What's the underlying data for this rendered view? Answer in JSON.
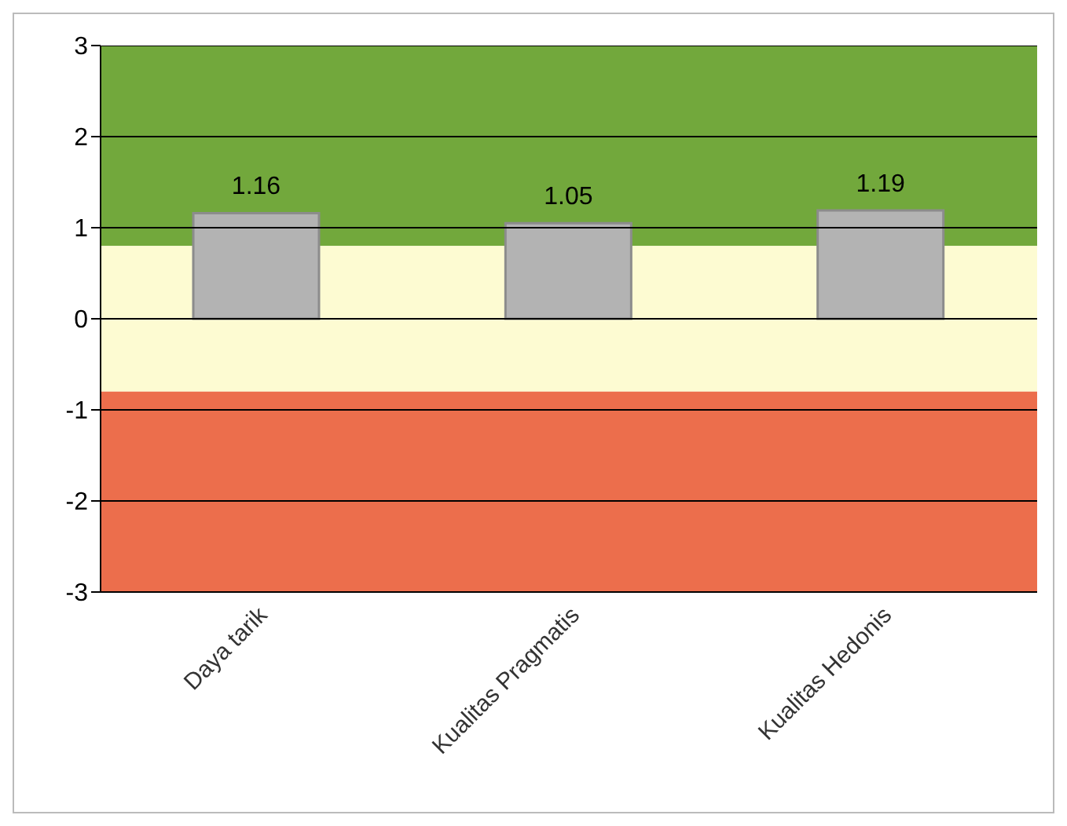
{
  "chart_data": {
    "type": "bar",
    "categories": [
      "Daya tarik",
      "Kualitas Pragmatis",
      "Kualitas Hedonis"
    ],
    "values": [
      1.16,
      1.05,
      1.19
    ],
    "color": "#b3b3b3",
    "data_labels": true,
    "ylim": [
      -3,
      3
    ],
    "yticks": [
      -3,
      -2,
      -1,
      0,
      1,
      2,
      3
    ],
    "grid": "y",
    "legend": false,
    "bands": [
      {
        "axis": "y",
        "from": 0.8,
        "to": 3,
        "color": "#72a83c"
      },
      {
        "axis": "y",
        "from": -0.8,
        "to": 0.8,
        "color": "#fdfbd2"
      },
      {
        "axis": "y",
        "from": -3,
        "to": -0.8,
        "color": "#ec6e4c"
      }
    ]
  }
}
